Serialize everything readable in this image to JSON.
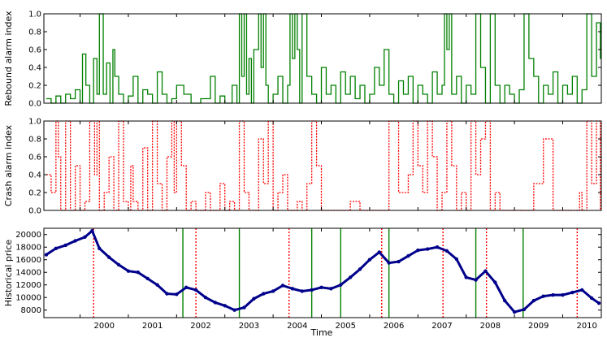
{
  "chart_data": [
    {
      "type": "line",
      "ylabel": "Rebound alarm index",
      "ylim": [
        0.0,
        1.0
      ],
      "yticks": [
        "0.0",
        "0.2",
        "0.4",
        "0.6",
        "0.8",
        "1.0"
      ],
      "xlim": [
        1999.25,
        2010.8
      ],
      "line_color": "#008000",
      "line_style": "solid",
      "series": [
        {
          "x": [
            1999.3,
            1999.4,
            1999.5,
            1999.6,
            1999.7,
            1999.8,
            1999.9,
            2000.0,
            2000.05,
            2000.12,
            2000.2,
            2000.28,
            2000.35,
            2000.4,
            2000.48,
            2000.55,
            2000.62,
            2000.68,
            2000.72,
            2000.8,
            2000.9,
            2001.0,
            2001.1,
            2001.2,
            2001.3,
            2001.4,
            2001.5,
            2001.6,
            2001.7,
            2001.8,
            2001.9,
            2002.0,
            2002.15,
            2002.3,
            2002.5,
            2002.7,
            2002.8,
            2002.9,
            2003.0,
            2003.15,
            2003.25,
            2003.3,
            2003.35,
            2003.4,
            2003.45,
            2003.5,
            2003.55,
            2003.6,
            2003.7,
            2003.75,
            2003.8,
            2003.85,
            2003.9,
            2004.0,
            2004.1,
            2004.2,
            2004.3,
            2004.35,
            2004.4,
            2004.45,
            2004.5,
            2004.55,
            2004.6,
            2004.7,
            2004.8,
            2004.9,
            2005.0,
            2005.1,
            2005.2,
            2005.3,
            2005.4,
            2005.5,
            2005.6,
            2005.7,
            2005.8,
            2005.9,
            2006.0,
            2006.1,
            2006.2,
            2006.3,
            2006.4,
            2006.5,
            2006.6,
            2006.7,
            2006.8,
            2006.9,
            2007.0,
            2007.1,
            2007.2,
            2007.3,
            2007.4,
            2007.5,
            2007.55,
            2007.6,
            2007.65,
            2007.7,
            2007.8,
            2007.9,
            2008.0,
            2008.1,
            2008.2,
            2008.3,
            2008.4,
            2008.5,
            2008.6,
            2008.7,
            2008.8,
            2008.9,
            2009.0,
            2009.1,
            2009.2,
            2009.3,
            2009.4,
            2009.5,
            2009.6,
            2009.7,
            2009.8,
            2009.9,
            2010.0,
            2010.1,
            2010.2,
            2010.3,
            2010.4,
            2010.5,
            2010.6,
            2010.7,
            2010.78
          ],
          "y": [
            0.05,
            0.0,
            0.08,
            0.0,
            0.1,
            0.05,
            0.15,
            0.0,
            0.55,
            0.2,
            0.0,
            0.5,
            0.1,
            1.0,
            0.1,
            0.45,
            0.0,
            0.6,
            0.3,
            0.1,
            0.0,
            0.08,
            0.3,
            0.0,
            0.15,
            0.1,
            0.0,
            0.35,
            0.1,
            0.0,
            0.05,
            0.2,
            0.1,
            0.0,
            0.05,
            0.3,
            0.0,
            0.08,
            0.0,
            0.2,
            0.0,
            1.0,
            0.3,
            1.0,
            0.1,
            0.5,
            0.0,
            0.6,
            1.0,
            0.4,
            1.0,
            0.2,
            0.0,
            0.1,
            0.3,
            0.0,
            0.2,
            1.0,
            0.5,
            1.0,
            0.6,
            0.0,
            1.0,
            0.3,
            0.1,
            0.0,
            0.4,
            0.1,
            0.2,
            0.0,
            0.35,
            0.1,
            0.3,
            0.05,
            0.2,
            0.0,
            0.1,
            0.4,
            0.2,
            0.6,
            0.1,
            0.0,
            0.25,
            0.1,
            0.3,
            0.0,
            0.2,
            0.1,
            0.0,
            0.35,
            0.1,
            0.2,
            1.0,
            0.6,
            1.0,
            0.1,
            0.3,
            0.0,
            0.2,
            0.1,
            1.0,
            0.4,
            0.0,
            1.0,
            0.2,
            0.0,
            0.2,
            0.1,
            0.0,
            0.15,
            1.0,
            0.5,
            0.3,
            0.0,
            0.2,
            0.1,
            0.35,
            0.0,
            0.2,
            0.1,
            0.3,
            0.0,
            0.15,
            1.0,
            0.3,
            0.9,
            0.5
          ]
        }
      ]
    },
    {
      "type": "line",
      "ylabel": "Crash alarm index",
      "ylim": [
        0.0,
        1.0
      ],
      "yticks": [
        "0.0",
        "0.2",
        "0.4",
        "0.6",
        "0.8",
        "1.0"
      ],
      "xlim": [
        1999.25,
        2010.8
      ],
      "line_color": "#ff0000",
      "line_style": "dotted",
      "series": [
        {
          "x": [
            1999.3,
            1999.4,
            1999.5,
            1999.55,
            1999.6,
            1999.7,
            1999.8,
            1999.9,
            2000.0,
            2000.1,
            2000.2,
            2000.3,
            2000.35,
            2000.4,
            2000.5,
            2000.6,
            2000.7,
            2000.8,
            2000.9,
            2001.0,
            2001.05,
            2001.1,
            2001.2,
            2001.3,
            2001.4,
            2001.5,
            2001.6,
            2001.7,
            2001.8,
            2001.9,
            2001.95,
            2002.0,
            2002.1,
            2002.2,
            2002.3,
            2002.4,
            2002.5,
            2002.6,
            2002.7,
            2002.8,
            2002.9,
            2003.0,
            2003.1,
            2003.2,
            2003.3,
            2003.4,
            2003.5,
            2003.6,
            2003.7,
            2003.8,
            2003.9,
            2004.0,
            2004.1,
            2004.2,
            2004.3,
            2004.4,
            2004.5,
            2004.6,
            2004.7,
            2004.8,
            2004.9,
            2005.0,
            2005.2,
            2005.4,
            2005.6,
            2005.8,
            2006.0,
            2006.2,
            2006.4,
            2006.6,
            2006.8,
            2006.9,
            2007.0,
            2007.1,
            2007.2,
            2007.3,
            2007.4,
            2007.5,
            2007.6,
            2007.7,
            2007.8,
            2007.9,
            2008.0,
            2008.1,
            2008.2,
            2008.3,
            2008.4,
            2008.5,
            2008.6,
            2008.7,
            2008.8,
            2009.0,
            2009.2,
            2009.4,
            2009.6,
            2009.8,
            2010.0,
            2010.2,
            2010.35,
            2010.4,
            2010.5,
            2010.6,
            2010.7,
            2010.78
          ],
          "y": [
            0.4,
            0.2,
            1.0,
            0.6,
            0.0,
            1.0,
            0.0,
            0.5,
            0.0,
            0.1,
            1.0,
            0.4,
            1.0,
            0.0,
            0.2,
            0.6,
            0.0,
            1.0,
            0.1,
            0.0,
            0.5,
            0.1,
            0.0,
            0.7,
            0.0,
            1.0,
            0.3,
            0.0,
            0.6,
            1.0,
            0.2,
            1.0,
            0.5,
            0.0,
            0.1,
            0.0,
            0.0,
            0.2,
            0.0,
            0.0,
            0.3,
            0.0,
            0.1,
            0.0,
            1.0,
            0.2,
            0.0,
            0.0,
            0.8,
            0.3,
            1.0,
            0.0,
            0.2,
            0.4,
            0.0,
            0.0,
            0.1,
            0.0,
            0.3,
            1.0,
            0.5,
            0.0,
            0.0,
            0.0,
            0.1,
            0.0,
            0.0,
            0.0,
            1.0,
            0.2,
            0.4,
            1.0,
            0.5,
            0.2,
            1.0,
            0.6,
            0.0,
            0.2,
            1.0,
            0.5,
            0.0,
            0.2,
            0.0,
            1.0,
            0.4,
            0.8,
            1.0,
            0.0,
            0.2,
            0.0,
            0.0,
            0.0,
            0.0,
            0.3,
            0.8,
            0.0,
            0.0,
            0.0,
            0.2,
            0.0,
            1.0,
            0.3,
            1.0,
            0.0
          ]
        }
      ]
    },
    {
      "type": "scatter",
      "xlabel": "Time",
      "ylabel": "Historical price",
      "ylim": [
        6800,
        21000
      ],
      "yticks": [
        "8000",
        "10000",
        "12000",
        "14000",
        "16000",
        "18000",
        "20000"
      ],
      "xlim": [
        1999.25,
        2010.8
      ],
      "xticks": [
        "2000",
        "2001",
        "2002",
        "2003",
        "2004",
        "2005",
        "2006",
        "2007",
        "2008",
        "2009",
        "2010"
      ],
      "marker_color": "#00008b",
      "series": [
        {
          "x": [
            1999.3,
            1999.5,
            1999.7,
            1999.9,
            2000.1,
            2000.25,
            2000.4,
            2000.6,
            2000.8,
            2001.0,
            2001.2,
            2001.4,
            2001.6,
            2001.8,
            2002.0,
            2002.2,
            2002.4,
            2002.6,
            2002.8,
            2003.0,
            2003.2,
            2003.4,
            2003.6,
            2003.8,
            2004.0,
            2004.2,
            2004.4,
            2004.6,
            2004.8,
            2005.0,
            2005.2,
            2005.4,
            2005.6,
            2005.8,
            2006.0,
            2006.2,
            2006.4,
            2006.6,
            2006.8,
            2007.0,
            2007.2,
            2007.4,
            2007.6,
            2007.8,
            2008.0,
            2008.2,
            2008.4,
            2008.6,
            2008.8,
            2009.0,
            2009.2,
            2009.4,
            2009.6,
            2009.8,
            2010.0,
            2010.2,
            2010.4,
            2010.6,
            2010.75
          ],
          "y": [
            16800,
            17800,
            18300,
            19000,
            19600,
            20600,
            17800,
            16400,
            15200,
            14200,
            14000,
            13000,
            12000,
            10600,
            10500,
            11600,
            11200,
            10000,
            9200,
            8700,
            8000,
            8400,
            9800,
            10600,
            11000,
            11900,
            11400,
            11000,
            11200,
            11600,
            11400,
            12000,
            13200,
            14500,
            16000,
            17200,
            15500,
            15700,
            16600,
            17500,
            17700,
            18000,
            17400,
            16100,
            13200,
            12800,
            14200,
            12400,
            9500,
            7700,
            8100,
            9500,
            10200,
            10400,
            10400,
            10800,
            11200,
            9900,
            9100
          ]
        }
      ],
      "vlines": [
        {
          "x": 2000.28,
          "color": "#ff0000",
          "style": "dotted"
        },
        {
          "x": 2002.13,
          "color": "#008000",
          "style": "solid"
        },
        {
          "x": 2002.4,
          "color": "#ff0000",
          "style": "dotted"
        },
        {
          "x": 2003.3,
          "color": "#008000",
          "style": "solid"
        },
        {
          "x": 2004.33,
          "color": "#ff0000",
          "style": "dotted"
        },
        {
          "x": 2004.8,
          "color": "#008000",
          "style": "solid"
        },
        {
          "x": 2005.4,
          "color": "#008000",
          "style": "solid"
        },
        {
          "x": 2006.25,
          "color": "#ff0000",
          "style": "dotted"
        },
        {
          "x": 2006.4,
          "color": "#008000",
          "style": "solid"
        },
        {
          "x": 2007.52,
          "color": "#ff0000",
          "style": "dotted"
        },
        {
          "x": 2008.2,
          "color": "#008000",
          "style": "solid"
        },
        {
          "x": 2008.42,
          "color": "#ff0000",
          "style": "dotted"
        },
        {
          "x": 2009.18,
          "color": "#008000",
          "style": "solid"
        },
        {
          "x": 2010.3,
          "color": "#ff0000",
          "style": "dotted"
        }
      ]
    }
  ]
}
